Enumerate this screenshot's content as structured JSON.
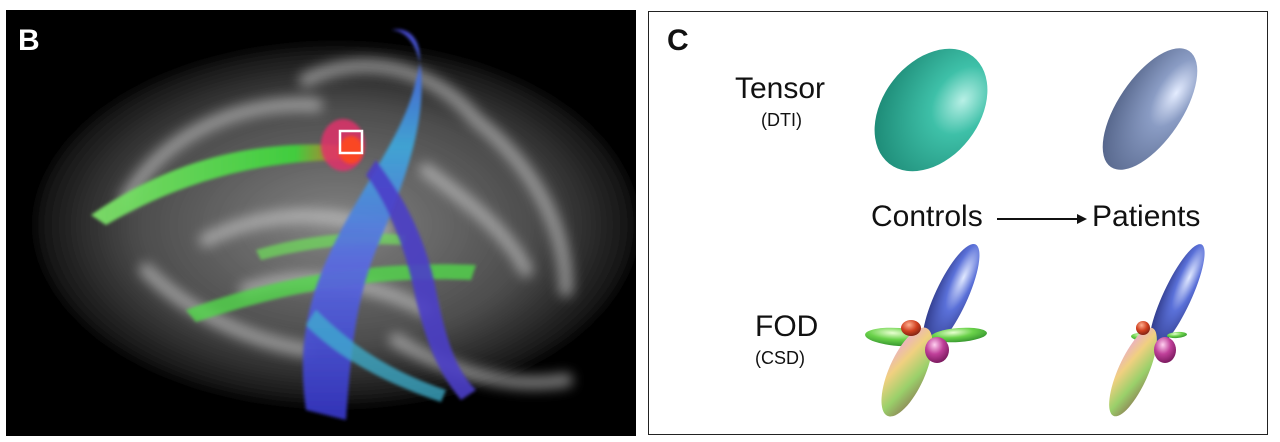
{
  "panel_b": {
    "letter": "B"
  },
  "panel_c": {
    "letter": "C",
    "tensor_label": "Tensor",
    "tensor_sub": "(DTI)",
    "fod_label": "FOD",
    "fod_sub": "(CSD)",
    "controls_label": "Controls",
    "patients_label": "Patients"
  },
  "colors": {
    "tensor_controls": "#2bb39a",
    "tensor_patients": "#7b8db3",
    "frame": "#222222",
    "roi_box": "#ffffff"
  }
}
